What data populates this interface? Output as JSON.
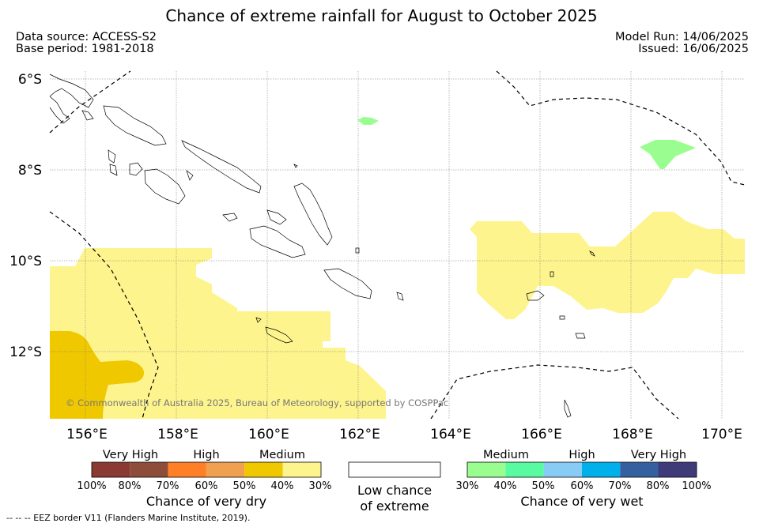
{
  "title": "Chance of extreme rainfall for August to October 2025",
  "meta": {
    "data_source": "Data source: ACCESS-S2",
    "base_period": "Base period: 1981-2018",
    "model_run": "Model Run: 14/06/2025",
    "issued": "Issued: 16/06/2025"
  },
  "map": {
    "lon_range": [
      155.2,
      170.5
    ],
    "lat_range": [
      -13.5,
      -5.8
    ],
    "lat_ticks": [
      {
        "value": -6,
        "label": "6°S"
      },
      {
        "value": -8,
        "label": "8°S"
      },
      {
        "value": -10,
        "label": "10°S"
      },
      {
        "value": -12,
        "label": "12°S"
      }
    ],
    "lon_ticks": [
      {
        "value": 156,
        "label": "156°E"
      },
      {
        "value": 158,
        "label": "158°E"
      },
      {
        "value": 160,
        "label": "160°E"
      },
      {
        "value": 162,
        "label": "162°E"
      },
      {
        "value": 164,
        "label": "164°E"
      },
      {
        "value": 166,
        "label": "166°E"
      },
      {
        "value": 168,
        "label": "168°E"
      },
      {
        "value": 170,
        "label": "170°E"
      }
    ],
    "copyright": "© Commonwealth of Australia 2025, Bureau of Meteorology, supported by COSPPac"
  },
  "colors": {
    "dry_30_40": "#fdf48d",
    "dry_40_50": "#f0c800",
    "wet_30_40": "#99fe8f",
    "eez": "#000000",
    "coast": "#000000"
  },
  "legend_dry": {
    "categories": [
      "Very High",
      "High",
      "Medium"
    ],
    "colors": [
      "#8b3a33",
      "#8e4d3a",
      "#ff7f27",
      "#f0a050",
      "#f0c800",
      "#fdf48d"
    ],
    "ticks": [
      "100%",
      "80%",
      "70%",
      "60%",
      "50%",
      "40%",
      "30%"
    ],
    "title": "Chance of very dry"
  },
  "legend_none": {
    "title_line1": "Low chance",
    "title_line2": "of extreme"
  },
  "legend_wet": {
    "categories": [
      "Medium",
      "High",
      "Very High"
    ],
    "colors": [
      "#99fe8f",
      "#58fba0",
      "#88ccf5",
      "#00b0eb",
      "#3560a0",
      "#3f3a78"
    ],
    "ticks": [
      "30%",
      "40%",
      "50%",
      "60%",
      "70%",
      "80%",
      "100%"
    ],
    "title": "Chance of very wet"
  },
  "footer": "--  --  -- EEZ border V11 (Flanders Marine Institute, 2019)."
}
